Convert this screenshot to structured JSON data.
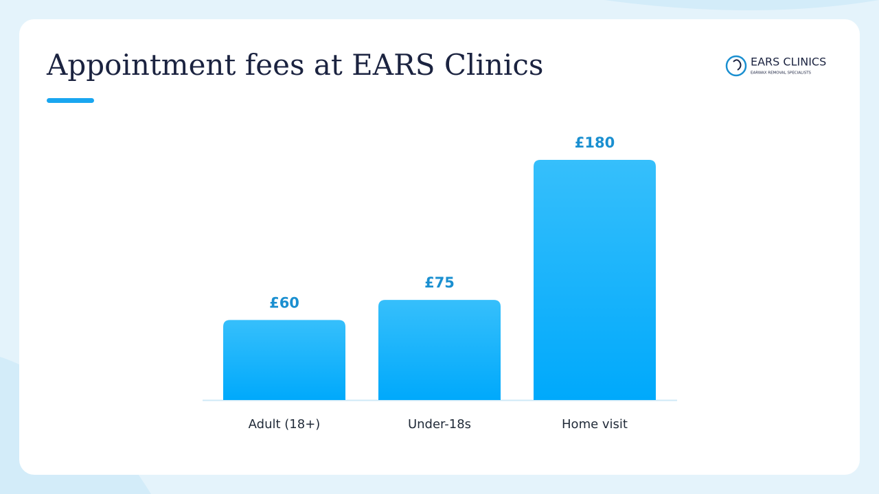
{
  "chart_data": {
    "type": "bar",
    "title": "Appointment fees at EARS Clinics",
    "categories": [
      "Adult (18+)",
      "Under-18s",
      "Home visit"
    ],
    "values": [
      60,
      75,
      180
    ],
    "value_labels": [
      "£60",
      "£75",
      "£180"
    ],
    "color": "#00aaff"
  },
  "logo": {
    "name": "EARS CLINICS",
    "tagline": "EARWAX REMOVAL SPECIALISTS"
  }
}
